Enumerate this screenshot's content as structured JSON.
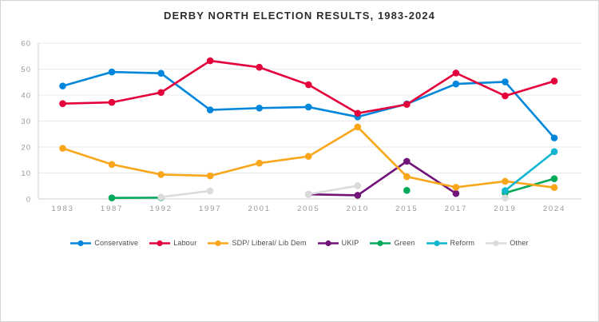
{
  "page": {
    "title": "DERBY NORTH ELECTION RESULTS, 1983-2024"
  },
  "chart_data": {
    "type": "line",
    "title": "DERBY NORTH ELECTION RESULTS, 1983-2024",
    "xlabel": "",
    "ylabel": "",
    "ylim": [
      0,
      60
    ],
    "yticks": [
      0,
      10,
      20,
      30,
      40,
      50,
      60
    ],
    "grid": true,
    "legend_position": "bottom",
    "categories": [
      "1983",
      "1987",
      "1992",
      "1997",
      "2001",
      "2005",
      "2010",
      "2015",
      "2017",
      "2019",
      "2024"
    ],
    "series": [
      {
        "name": "Conservative",
        "color": "#0087DC",
        "values": [
          43.5,
          48.9,
          48.4,
          34.3,
          35.0,
          35.4,
          31.6,
          36.6,
          44.3,
          45.1,
          23.5
        ]
      },
      {
        "name": "Labour",
        "color": "#E4003B",
        "values": [
          36.7,
          37.2,
          41.0,
          53.2,
          50.7,
          44.0,
          33.0,
          36.4,
          48.5,
          39.7,
          45.4
        ]
      },
      {
        "name": "SDP/ Liberal/ Lib Dem",
        "color": "#FAA61A",
        "values": [
          19.5,
          13.3,
          9.4,
          8.9,
          13.8,
          16.4,
          27.7,
          8.6,
          4.5,
          6.8,
          4.4
        ]
      },
      {
        "name": "UKIP",
        "color": "#70147A",
        "values": [
          null,
          null,
          null,
          null,
          null,
          1.8,
          1.4,
          14.5,
          2.1,
          null,
          null
        ]
      },
      {
        "name": "Green",
        "color": "#02A95B",
        "values": [
          null,
          0.4,
          0.5,
          null,
          null,
          null,
          null,
          3.3,
          null,
          2.3,
          7.8
        ]
      },
      {
        "name": "Reform",
        "color": "#12B6CF",
        "values": [
          null,
          null,
          null,
          null,
          null,
          null,
          null,
          null,
          null,
          3.2,
          18.2
        ]
      },
      {
        "name": "Other",
        "color": "#DBDBDB",
        "values": [
          null,
          null,
          0.7,
          3.1,
          null,
          1.8,
          5.1,
          null,
          null,
          0.4,
          null
        ]
      }
    ]
  }
}
